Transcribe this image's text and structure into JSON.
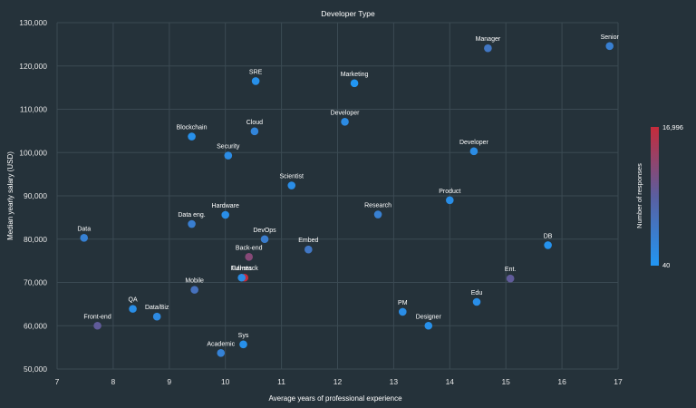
{
  "chart_data": {
    "type": "scatter",
    "title": "Developer Type",
    "xlabel": "Average years of professional experience",
    "ylabel": "Median yearly salary (USD)",
    "xlim": [
      7,
      17
    ],
    "ylim": [
      50000,
      130000
    ],
    "x_ticks": [
      "7",
      "8",
      "9",
      "10",
      "11",
      "12",
      "13",
      "14",
      "15",
      "16",
      "17"
    ],
    "y_ticks": [
      "50,000",
      "60,000",
      "70,000",
      "80,000",
      "90,000",
      "100,000",
      "110,000",
      "120,000",
      "130,000"
    ],
    "grid": true,
    "colorbar": {
      "title": "Number of responses",
      "min_label": "40",
      "max_label": "16,996",
      "min": 40,
      "max": 16996,
      "colors": [
        "#2196f3",
        "#5a5ea0",
        "#c62b3b"
      ]
    },
    "points": [
      {
        "label": "Data",
        "x": 7.48,
        "y": 80300,
        "responses": 3200
      },
      {
        "label": "Front-end",
        "x": 7.72,
        "y": 60000,
        "responses": 9000
      },
      {
        "label": "QA",
        "x": 8.35,
        "y": 63900,
        "responses": 1300
      },
      {
        "label": "Data/Biz",
        "x": 8.78,
        "y": 62100,
        "responses": 1800
      },
      {
        "label": "Blockchain",
        "x": 9.4,
        "y": 103700,
        "responses": 900
      },
      {
        "label": "Data eng.",
        "x": 9.4,
        "y": 83500,
        "responses": 3600
      },
      {
        "label": "Mobile",
        "x": 9.45,
        "y": 68300,
        "responses": 5600
      },
      {
        "label": "Academic",
        "x": 9.92,
        "y": 53700,
        "responses": 3000
      },
      {
        "label": "Hardware",
        "x": 10.0,
        "y": 85600,
        "responses": 1200
      },
      {
        "label": "Security",
        "x": 10.05,
        "y": 99300,
        "responses": 1500
      },
      {
        "label": "Full-stack",
        "x": 10.34,
        "y": 71100,
        "responses": 16996
      },
      {
        "label": "Games",
        "x": 10.29,
        "y": 71100,
        "responses": 1600
      },
      {
        "label": "Sys",
        "x": 10.32,
        "y": 55700,
        "responses": 1000
      },
      {
        "label": "Back-end",
        "x": 10.42,
        "y": 75900,
        "responses": 12000
      },
      {
        "label": "SRE",
        "x": 10.54,
        "y": 116500,
        "responses": 1000
      },
      {
        "label": "Cloud",
        "x": 10.52,
        "y": 104900,
        "responses": 2600
      },
      {
        "label": "DevOps",
        "x": 10.7,
        "y": 80000,
        "responses": 3800
      },
      {
        "label": "Scientist",
        "x": 11.18,
        "y": 92400,
        "responses": 1400
      },
      {
        "label": "Embed",
        "x": 11.48,
        "y": 77600,
        "responses": 4800
      },
      {
        "label": "Developer",
        "x": 12.13,
        "y": 107100,
        "responses": 1700
      },
      {
        "label": "Marketing",
        "x": 12.3,
        "y": 116000,
        "responses": 40
      },
      {
        "label": "Research",
        "x": 12.72,
        "y": 85700,
        "responses": 3400
      },
      {
        "label": "PM",
        "x": 13.16,
        "y": 63200,
        "responses": 1400
      },
      {
        "label": "Designer",
        "x": 13.62,
        "y": 60000,
        "responses": 1000
      },
      {
        "label": "Product",
        "x": 14.0,
        "y": 89000,
        "responses": 1300
      },
      {
        "label": "Developer",
        "x": 14.43,
        "y": 100300,
        "responses": 1600
      },
      {
        "label": "Edu",
        "x": 14.48,
        "y": 65500,
        "responses": 1200
      },
      {
        "label": "Manager",
        "x": 14.68,
        "y": 124100,
        "responses": 4800
      },
      {
        "label": "Ent.",
        "x": 15.08,
        "y": 70900,
        "responses": 9000
      },
      {
        "label": "DB",
        "x": 15.75,
        "y": 78600,
        "responses": 700
      },
      {
        "label": "Senior",
        "x": 16.85,
        "y": 124600,
        "responses": 3500
      }
    ]
  }
}
